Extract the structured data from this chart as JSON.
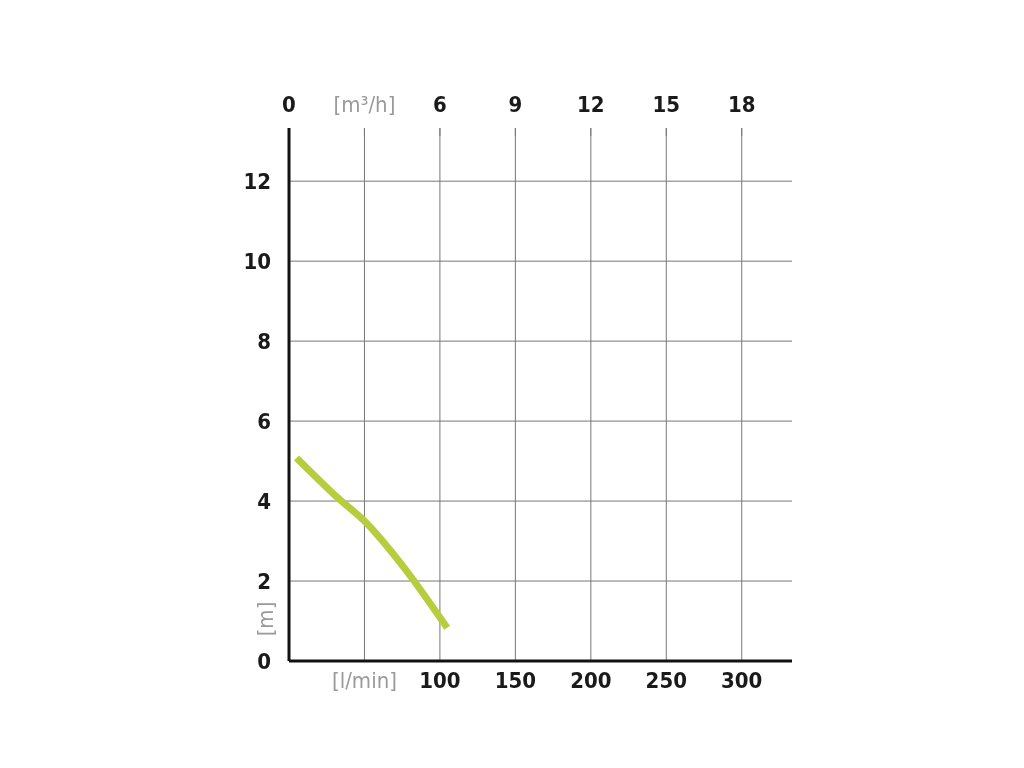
{
  "chart_data": {
    "type": "line",
    "xlabel": "[l/min]",
    "x2label": "[m³/h]",
    "ylabel": "[m]",
    "x": [
      5,
      32.4,
      50,
      67.5,
      82.9,
      104.8
    ],
    "series": [
      {
        "color": "#b7cd3e",
        "values": [
          5.08,
          4.08,
          3.5,
          2.75,
          2.0,
          0.83
        ]
      }
    ],
    "xlim": [
      0,
      333.3
    ],
    "xticks": [
      {
        "value": 0,
        "label": null
      },
      {
        "value": 50,
        "label": null
      },
      100,
      150,
      200,
      250,
      300
    ],
    "x2lim": [
      0,
      20
    ],
    "x2ticks": [
      0,
      {
        "value": 3,
        "label": null
      },
      6,
      9,
      12,
      15,
      18
    ],
    "ylim": [
      0,
      13.33
    ],
    "yticks": [
      0,
      2,
      4,
      6,
      8,
      10,
      12
    ],
    "grid": true,
    "marker": "none",
    "line_style": "solid"
  }
}
